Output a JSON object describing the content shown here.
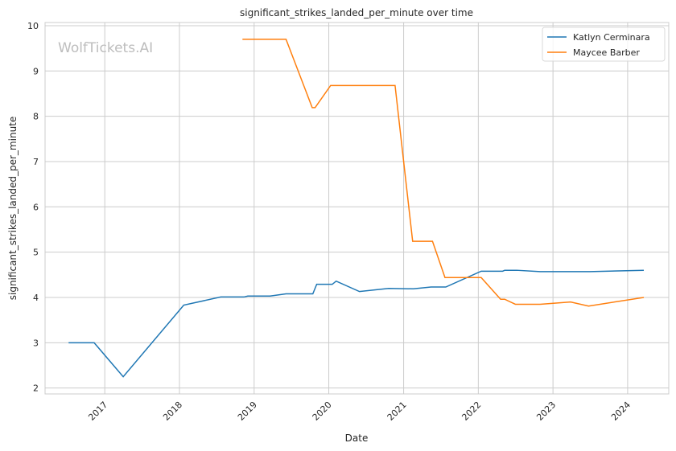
{
  "chart_data": {
    "type": "line",
    "title": "significant_strikes_landed_per_minute over time",
    "xlabel": "Date",
    "ylabel": "significant_strikes_landed_per_minute",
    "watermark": "WolfTickets.AI",
    "xlim": [
      "2016-03-15",
      "2024-07-20"
    ],
    "ylim": [
      1.87,
      10.07
    ],
    "xticks": [
      "2017",
      "2018",
      "2019",
      "2020",
      "2021",
      "2022",
      "2023",
      "2024"
    ],
    "yticks": [
      2,
      3,
      4,
      5,
      6,
      7,
      8,
      9,
      10
    ],
    "grid": true,
    "legend": "top-right",
    "series": [
      {
        "name": "Katlyn Cerminara",
        "color": "#1f77b4",
        "points": [
          [
            "2016-07-08",
            3.0
          ],
          [
            "2016-11-10",
            3.0
          ],
          [
            "2017-04-01",
            2.25
          ],
          [
            "2018-01-22",
            3.83
          ],
          [
            "2018-07-22",
            4.01
          ],
          [
            "2018-11-12",
            4.01
          ],
          [
            "2018-12-01",
            4.03
          ],
          [
            "2019-03-20",
            4.03
          ],
          [
            "2019-06-06",
            4.08
          ],
          [
            "2019-10-15",
            4.08
          ],
          [
            "2019-11-03",
            4.29
          ],
          [
            "2020-01-18",
            4.29
          ],
          [
            "2020-02-06",
            4.36
          ],
          [
            "2020-05-30",
            4.13
          ],
          [
            "2020-10-20",
            4.2
          ],
          [
            "2021-02-17",
            4.19
          ],
          [
            "2021-05-15",
            4.23
          ],
          [
            "2021-07-26",
            4.23
          ],
          [
            "2022-01-15",
            4.58
          ],
          [
            "2022-04-30",
            4.58
          ],
          [
            "2022-05-10",
            4.6
          ],
          [
            "2022-07-08",
            4.6
          ],
          [
            "2022-10-30",
            4.57
          ],
          [
            "2023-07-01",
            4.57
          ],
          [
            "2024-03-20",
            4.6
          ]
        ]
      },
      {
        "name": "Maycee Barber",
        "color": "#ff7f0e",
        "points": [
          [
            "2018-11-05",
            9.7
          ],
          [
            "2019-06-06",
            9.7
          ],
          [
            "2019-10-12",
            8.19
          ],
          [
            "2019-10-26",
            8.19
          ],
          [
            "2020-01-10",
            8.68
          ],
          [
            "2020-11-20",
            8.68
          ],
          [
            "2021-02-14",
            5.24
          ],
          [
            "2021-05-22",
            5.24
          ],
          [
            "2021-07-22",
            4.44
          ],
          [
            "2022-01-15",
            4.44
          ],
          [
            "2022-04-20",
            3.96
          ],
          [
            "2022-05-10",
            3.96
          ],
          [
            "2022-07-01",
            3.85
          ],
          [
            "2022-10-30",
            3.85
          ],
          [
            "2023-03-28",
            3.9
          ],
          [
            "2023-06-24",
            3.81
          ],
          [
            "2024-03-20",
            4.0
          ]
        ]
      }
    ]
  }
}
